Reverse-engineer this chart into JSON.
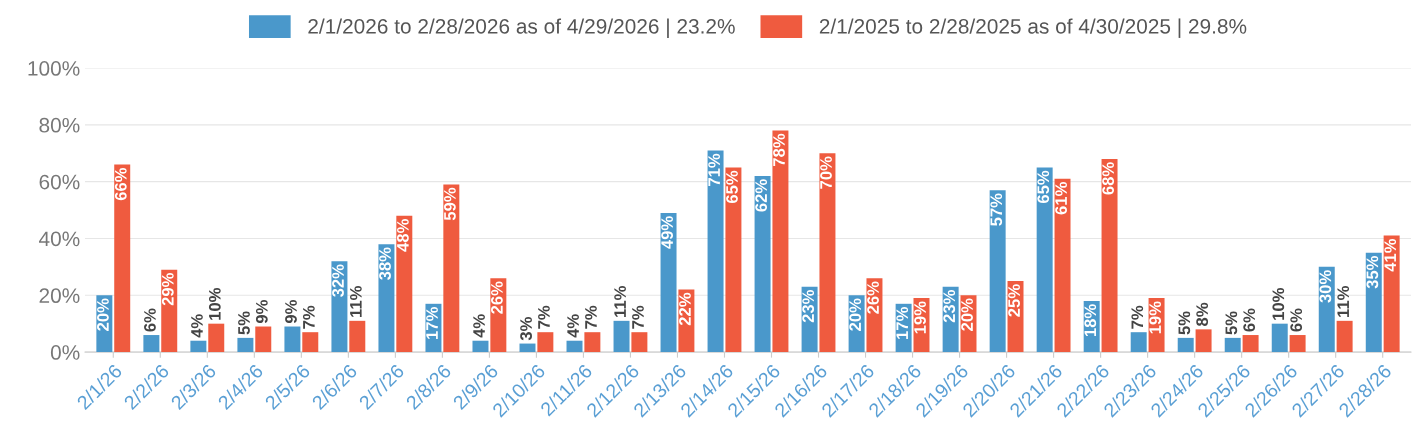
{
  "chart_data": {
    "type": "bar",
    "categories": [
      "2/1/26",
      "2/2/26",
      "2/3/26",
      "2/4/26",
      "2/5/26",
      "2/6/26",
      "2/7/26",
      "2/8/26",
      "2/9/26",
      "2/10/26",
      "2/11/26",
      "2/12/26",
      "2/13/26",
      "2/14/26",
      "2/15/26",
      "2/16/26",
      "2/17/26",
      "2/18/26",
      "2/19/26",
      "2/20/26",
      "2/21/26",
      "2/22/26",
      "2/23/26",
      "2/24/26",
      "2/25/26",
      "2/26/26",
      "2/27/26",
      "2/28/26"
    ],
    "series": [
      {
        "name": "2/1/2026 to 2/28/2026 as of 4/29/2026 | 23.2%",
        "color": "#4a98cb",
        "values": [
          20,
          6,
          4,
          5,
          9,
          32,
          38,
          17,
          4,
          3,
          4,
          11,
          49,
          71,
          62,
          23,
          20,
          17,
          23,
          57,
          65,
          18,
          7,
          5,
          5,
          10,
          30,
          35
        ],
        "value_labels": [
          "20%",
          "6%",
          "4%",
          "5%",
          "9%",
          "32%",
          "38%",
          "17%",
          "4%",
          "3%",
          "4%",
          "11%",
          "49%",
          "71%",
          "62%",
          "23%",
          "20%",
          "17%",
          "23%",
          "57%",
          "65%",
          "18%",
          "7%",
          "5%",
          "5%",
          "10%",
          "30%",
          "35%"
        ]
      },
      {
        "name": "2/1/2025 to 2/28/2025 as of 4/30/2025 | 29.8%",
        "color": "#ef5b3f",
        "values": [
          66,
          29,
          10,
          9,
          7,
          11,
          48,
          59,
          26,
          7,
          7,
          7,
          22,
          65,
          78,
          70,
          26,
          19,
          20,
          25,
          61,
          68,
          19,
          8,
          6,
          6,
          11,
          41
        ],
        "value_labels": [
          "66%",
          "29%",
          "10%",
          "9%",
          "7%",
          "11%",
          "48%",
          "59%",
          "26%",
          "7%",
          "7%",
          "7%",
          "22%",
          "65%",
          "78%",
          "70%",
          "26%",
          "19%",
          "20%",
          "25%",
          "61%",
          "68%",
          "19%",
          "8%",
          "6%",
          "6%",
          "11%",
          "41%"
        ]
      }
    ],
    "ylim": [
      0,
      100
    ],
    "yticks": [
      {
        "value": 0,
        "label": "0%"
      },
      {
        "value": 20,
        "label": "20%"
      },
      {
        "value": 40,
        "label": "40%"
      },
      {
        "value": 60,
        "label": "60%"
      },
      {
        "value": 80,
        "label": "80%"
      },
      {
        "value": 100,
        "label": "100%"
      }
    ],
    "grid": "y",
    "legend": "top"
  }
}
